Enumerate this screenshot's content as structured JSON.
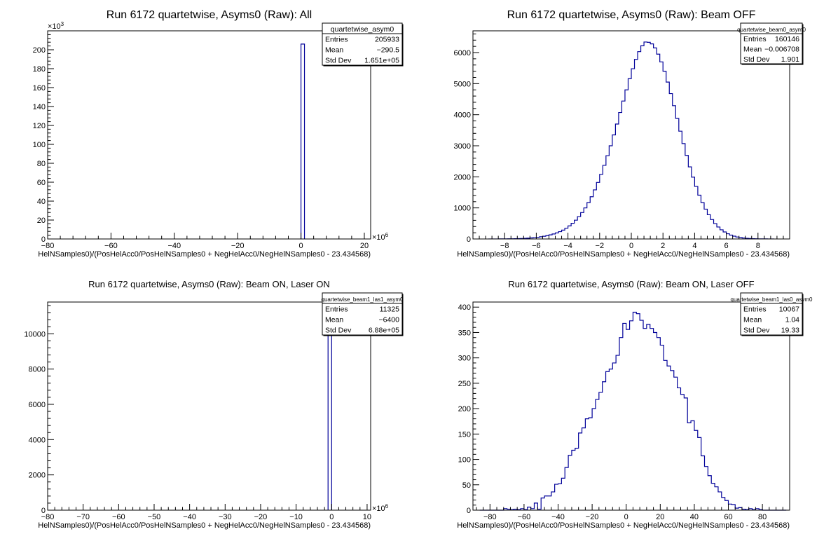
{
  "canvas": {
    "background": "#ffffff",
    "hist_color": "#000099",
    "frame_color": "#000000"
  },
  "chart_data": [
    {
      "type": "histogram",
      "title": "Run 6172 quartetwise, Asyms0 (Raw): All",
      "xlabel": "HelNSamples0)/(PosHelAcc0/PosHelNSamples0 + NegHelAcc0/NegHelNSamples0 - 23.434568)",
      "ylabel": "",
      "x_multiplier": "×10",
      "x_multiplier_exp": "6",
      "y_multiplier": "×10",
      "y_multiplier_exp": "3",
      "xlim": [
        -80,
        22
      ],
      "ylim": [
        0,
        220
      ],
      "xticks": [
        -80,
        -60,
        -40,
        -20,
        0,
        20
      ],
      "yticks": [
        0,
        20,
        40,
        60,
        80,
        100,
        120,
        140,
        160,
        180,
        200
      ],
      "bins": [
        {
          "x0": 0,
          "x1": 1.1,
          "y": 206
        }
      ],
      "stats": {
        "name": "quartetwise_asym0",
        "rows": [
          [
            "Entries",
            "205933"
          ],
          [
            "Mean",
            "−290.5"
          ],
          [
            "Std Dev",
            "1.651e+05"
          ]
        ]
      },
      "grid": false
    },
    {
      "type": "histogram",
      "title": "Run 6172 quartetwise, Asyms0 (Raw): Beam OFF",
      "xlabel": "HelNSamples0)/(PosHelAcc0/PosHelNSamples0 + NegHelAcc0/NegHelNSamples0 - 23.434568)",
      "ylabel": "",
      "xlim": [
        -10,
        10
      ],
      "ylim": [
        0,
        6700
      ],
      "xticks": [
        -8,
        -6,
        -4,
        -2,
        0,
        2,
        4,
        6,
        8
      ],
      "yticks": [
        0,
        1000,
        2000,
        3000,
        4000,
        5000,
        6000
      ],
      "bin_start": -9,
      "bin_width": 0.2,
      "values": [
        1,
        1,
        1,
        2,
        3,
        4,
        5,
        7,
        9,
        12,
        16,
        20,
        26,
        34,
        44,
        55,
        70,
        88,
        108,
        132,
        160,
        195,
        235,
        285,
        345,
        420,
        505,
        605,
        720,
        850,
        1000,
        1170,
        1360,
        1580,
        1820,
        2080,
        2370,
        2680,
        3000,
        3350,
        3700,
        4070,
        4440,
        4800,
        5160,
        5480,
        5780,
        6030,
        6220,
        6340,
        6330,
        6280,
        6150,
        5950,
        5700,
        5400,
        5050,
        4680,
        4290,
        3880,
        3470,
        3070,
        2690,
        2320,
        1990,
        1690,
        1410,
        1170,
        960,
        780,
        625,
        495,
        385,
        295,
        225,
        168,
        124,
        90,
        64,
        45,
        31,
        21,
        14,
        9,
        6,
        4,
        3,
        2,
        1,
        1
      ],
      "stats": {
        "name": "quartetwise_beam0_asym0",
        "rows": [
          [
            "Entries",
            "160146"
          ],
          [
            "Mean",
            "−0.006708"
          ],
          [
            "Std Dev",
            "1.901"
          ]
        ]
      },
      "grid": false
    },
    {
      "type": "histogram",
      "title": "Run 6172 quartetwise, Asyms0 (Raw): Beam ON, Laser ON",
      "xlabel": "HelNSamples0)/(PosHelAcc0/PosHelNSamples0 + NegHelAcc0/NegHelNSamples0 - 23.434568)",
      "ylabel": "",
      "x_multiplier": "×10",
      "x_multiplier_exp": "6",
      "xlim": [
        -80,
        11
      ],
      "ylim": [
        0,
        11800
      ],
      "xticks": [
        -80,
        -70,
        -60,
        -50,
        -40,
        -30,
        -20,
        -10,
        0,
        10
      ],
      "yticks": [
        0,
        2000,
        4000,
        6000,
        8000,
        10000
      ],
      "bins": [
        {
          "x0": -1.0,
          "x1": 0.0,
          "y": 11200
        }
      ],
      "stats": {
        "name": "quartetwise_beam1_las1_asym0",
        "rows": [
          [
            "Entries",
            "11325"
          ],
          [
            "Mean",
            "−6400"
          ],
          [
            "Std Dev",
            "6.88e+05"
          ]
        ]
      },
      "grid": false
    },
    {
      "type": "histogram",
      "title": "Run 6172 quartetwise, Asyms0 (Raw): Beam ON, Laser OFF",
      "xlabel": "HelNSamples0)/(PosHelAcc0/PosHelNSamples0 + NegHelAcc0/NegHelNSamples0 - 23.434568)",
      "ylabel": "",
      "xlim": [
        -90,
        96
      ],
      "ylim": [
        0,
        410
      ],
      "xticks": [
        -80,
        -60,
        -40,
        -20,
        0,
        20,
        40,
        60,
        80
      ],
      "yticks": [
        0,
        50,
        100,
        150,
        200,
        250,
        300,
        350,
        400
      ],
      "bin_start": -86,
      "bin_width": 2,
      "values": [
        0,
        0,
        0,
        0,
        0,
        0,
        0,
        3,
        2,
        1,
        2,
        1,
        3,
        1,
        6,
        3,
        14,
        2,
        24,
        28,
        28,
        36,
        51,
        52,
        63,
        84,
        108,
        118,
        122,
        152,
        162,
        180,
        182,
        200,
        218,
        232,
        253,
        273,
        278,
        290,
        305,
        340,
        368,
        356,
        373,
        390,
        387,
        374,
        358,
        366,
        358,
        350,
        340,
        325,
        295,
        284,
        275,
        262,
        241,
        228,
        221,
        172,
        176,
        157,
        143,
        107,
        86,
        68,
        53,
        46,
        36,
        25,
        19,
        12,
        11,
        4,
        5,
        2,
        1,
        3,
        1,
        3,
        1,
        0,
        0,
        0,
        0,
        0,
        0,
        0
      ],
      "stats": {
        "name": "quartetwise_beam1_las0_asym0",
        "rows": [
          [
            "Entries",
            "10067"
          ],
          [
            "Mean",
            "1.04"
          ],
          [
            "Std Dev",
            "19.33"
          ]
        ]
      },
      "grid": false
    }
  ]
}
